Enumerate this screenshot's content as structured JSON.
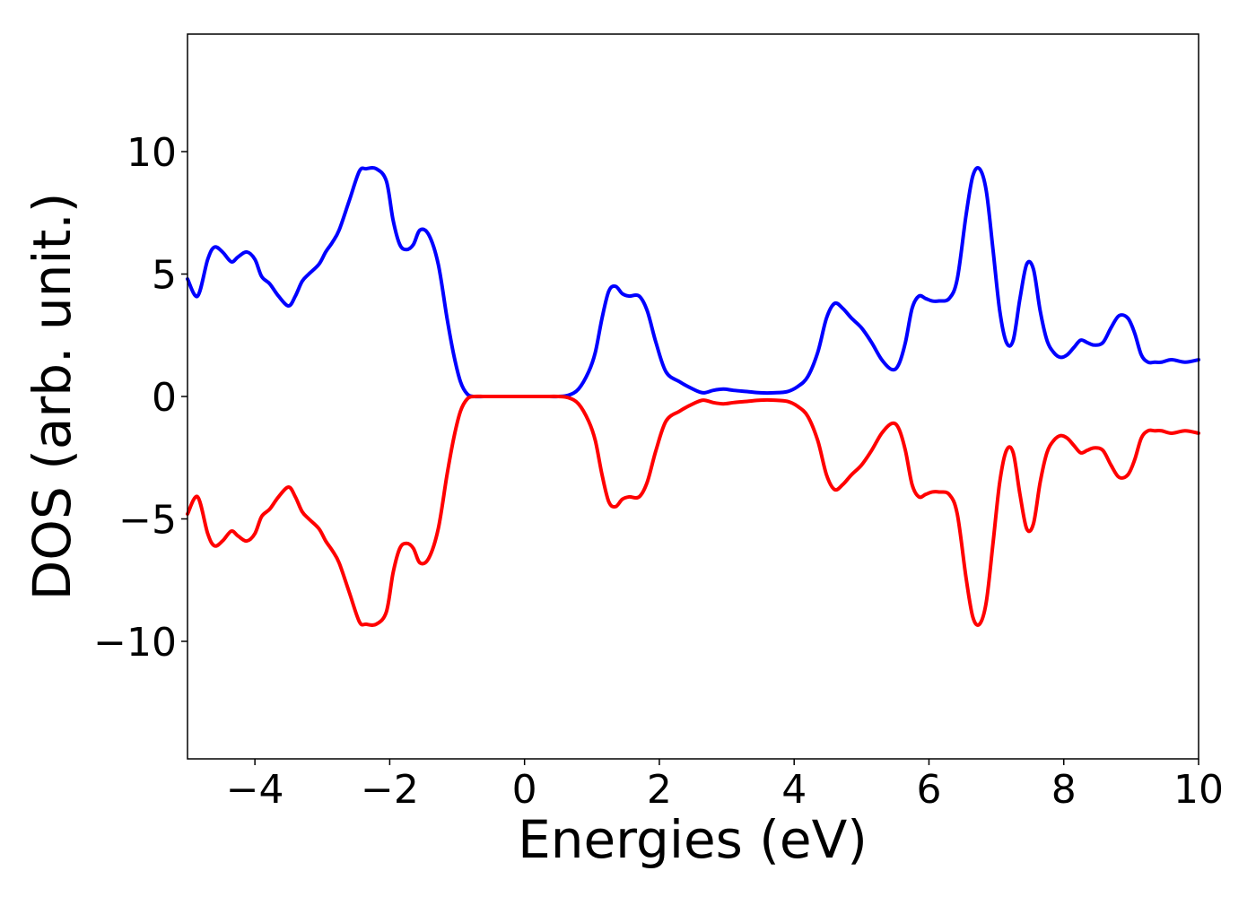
{
  "chart_data": {
    "type": "line",
    "title": "",
    "xlabel": "Energies (eV)",
    "ylabel": "DOS (arb. unit.)",
    "xlim": [
      -5,
      10
    ],
    "ylim": [
      -14.8,
      14.8
    ],
    "xticks": [
      -4,
      -2,
      0,
      2,
      4,
      6,
      8,
      10
    ],
    "xtick_labels": [
      "−4",
      "−2",
      "0",
      "2",
      "4",
      "6",
      "8",
      "10"
    ],
    "yticks": [
      -10,
      -5,
      0,
      5,
      10
    ],
    "ytick_labels": [
      "−10",
      "−5",
      "0",
      "5",
      "10"
    ],
    "grid": false,
    "legend": "none",
    "series": [
      {
        "color": "#0000ff",
        "x": [
          -5.0,
          -4.85,
          -4.7,
          -4.6,
          -4.48,
          -4.35,
          -4.25,
          -4.12,
          -4.0,
          -3.9,
          -3.78,
          -3.65,
          -3.5,
          -3.4,
          -3.3,
          -3.2,
          -3.05,
          -2.95,
          -2.85,
          -2.75,
          -2.6,
          -2.45,
          -2.35,
          -2.2,
          -2.05,
          -1.95,
          -1.85,
          -1.75,
          -1.65,
          -1.55,
          -1.42,
          -1.28,
          -1.15,
          -1.05,
          -0.95,
          -0.85,
          -0.75,
          -0.6,
          -0.45,
          -0.3,
          -0.1,
          0.1,
          0.3,
          0.5,
          0.65,
          0.8,
          0.95,
          1.05,
          1.15,
          1.25,
          1.35,
          1.45,
          1.55,
          1.7,
          1.82,
          1.95,
          2.1,
          2.3,
          2.5,
          2.65,
          2.8,
          2.95,
          3.1,
          3.3,
          3.5,
          3.7,
          3.9,
          4.05,
          4.2,
          4.35,
          4.48,
          4.6,
          4.72,
          4.85,
          5.0,
          5.15,
          5.3,
          5.45,
          5.55,
          5.65,
          5.75,
          5.85,
          5.95,
          6.05,
          6.15,
          6.3,
          6.42,
          6.55,
          6.65,
          6.75,
          6.85,
          6.95,
          7.05,
          7.15,
          7.25,
          7.35,
          7.45,
          7.55,
          7.65,
          7.75,
          7.85,
          7.95,
          8.05,
          8.15,
          8.25,
          8.35,
          8.45,
          8.58,
          8.7,
          8.82,
          8.95,
          9.05,
          9.15,
          9.25,
          9.35,
          9.45,
          9.6,
          9.8,
          10.0
        ],
        "y": [
          4.8,
          4.1,
          5.6,
          6.1,
          5.9,
          5.5,
          5.7,
          5.9,
          5.6,
          4.9,
          4.6,
          4.1,
          3.7,
          4.1,
          4.7,
          5.0,
          5.4,
          5.9,
          6.3,
          6.8,
          8.0,
          9.2,
          9.3,
          9.3,
          8.8,
          7.2,
          6.2,
          6.0,
          6.2,
          6.8,
          6.6,
          5.4,
          3.2,
          1.7,
          0.6,
          0.1,
          0.0,
          0.0,
          0.0,
          0.0,
          0.0,
          0.0,
          0.0,
          0.0,
          0.05,
          0.3,
          1.0,
          1.8,
          3.2,
          4.3,
          4.5,
          4.2,
          4.1,
          4.1,
          3.5,
          2.2,
          1.0,
          0.6,
          0.3,
          0.15,
          0.25,
          0.3,
          0.25,
          0.2,
          0.15,
          0.15,
          0.2,
          0.4,
          0.8,
          1.8,
          3.2,
          3.8,
          3.6,
          3.2,
          2.8,
          2.2,
          1.5,
          1.1,
          1.3,
          2.2,
          3.6,
          4.1,
          4.0,
          3.9,
          3.9,
          4.0,
          4.8,
          7.4,
          9.0,
          9.3,
          8.4,
          6.0,
          3.5,
          2.2,
          2.3,
          4.0,
          5.4,
          5.2,
          3.5,
          2.3,
          1.8,
          1.6,
          1.7,
          2.0,
          2.3,
          2.2,
          2.1,
          2.2,
          2.8,
          3.3,
          3.2,
          2.6,
          1.7,
          1.4,
          1.4,
          1.4,
          1.5,
          1.4,
          1.5
        ]
      },
      {
        "color": "#ff0000",
        "x": [
          -5.0,
          -4.85,
          -4.7,
          -4.6,
          -4.48,
          -4.35,
          -4.25,
          -4.12,
          -4.0,
          -3.9,
          -3.78,
          -3.65,
          -3.5,
          -3.4,
          -3.3,
          -3.2,
          -3.05,
          -2.95,
          -2.85,
          -2.75,
          -2.6,
          -2.45,
          -2.35,
          -2.2,
          -2.05,
          -1.95,
          -1.85,
          -1.75,
          -1.65,
          -1.55,
          -1.42,
          -1.28,
          -1.15,
          -1.05,
          -0.95,
          -0.85,
          -0.75,
          -0.6,
          -0.45,
          -0.3,
          -0.1,
          0.1,
          0.3,
          0.5,
          0.65,
          0.8,
          0.95,
          1.05,
          1.15,
          1.25,
          1.35,
          1.45,
          1.55,
          1.7,
          1.82,
          1.95,
          2.1,
          2.3,
          2.5,
          2.65,
          2.8,
          2.95,
          3.1,
          3.3,
          3.5,
          3.7,
          3.9,
          4.05,
          4.2,
          4.35,
          4.48,
          4.6,
          4.72,
          4.85,
          5.0,
          5.15,
          5.3,
          5.45,
          5.55,
          5.65,
          5.75,
          5.85,
          5.95,
          6.05,
          6.15,
          6.3,
          6.42,
          6.55,
          6.65,
          6.75,
          6.85,
          6.95,
          7.05,
          7.15,
          7.25,
          7.35,
          7.45,
          7.55,
          7.65,
          7.75,
          7.85,
          7.95,
          8.05,
          8.15,
          8.25,
          8.35,
          8.45,
          8.58,
          8.7,
          8.82,
          8.95,
          9.05,
          9.15,
          9.25,
          9.35,
          9.45,
          9.6,
          9.8,
          10.0
        ],
        "y": [
          -4.8,
          -4.1,
          -5.6,
          -6.1,
          -5.9,
          -5.5,
          -5.7,
          -5.9,
          -5.6,
          -4.9,
          -4.6,
          -4.1,
          -3.7,
          -4.1,
          -4.7,
          -5.0,
          -5.4,
          -5.9,
          -6.3,
          -6.8,
          -8.0,
          -9.2,
          -9.3,
          -9.3,
          -8.8,
          -7.2,
          -6.2,
          -6.0,
          -6.2,
          -6.8,
          -6.6,
          -5.4,
          -3.2,
          -1.7,
          -0.6,
          -0.1,
          0.0,
          0.0,
          0.0,
          0.0,
          0.0,
          0.0,
          0.0,
          0.0,
          -0.05,
          -0.3,
          -1.0,
          -1.8,
          -3.2,
          -4.3,
          -4.5,
          -4.2,
          -4.1,
          -4.1,
          -3.5,
          -2.2,
          -1.0,
          -0.6,
          -0.3,
          -0.15,
          -0.25,
          -0.3,
          -0.25,
          -0.2,
          -0.15,
          -0.15,
          -0.2,
          -0.4,
          -0.8,
          -1.8,
          -3.2,
          -3.8,
          -3.6,
          -3.2,
          -2.8,
          -2.2,
          -1.5,
          -1.1,
          -1.3,
          -2.2,
          -3.6,
          -4.1,
          -4.0,
          -3.9,
          -3.9,
          -4.0,
          -4.8,
          -7.4,
          -9.0,
          -9.3,
          -8.4,
          -6.0,
          -3.5,
          -2.2,
          -2.3,
          -4.0,
          -5.4,
          -5.2,
          -3.5,
          -2.3,
          -1.8,
          -1.6,
          -1.7,
          -2.0,
          -2.3,
          -2.2,
          -2.1,
          -2.2,
          -2.8,
          -3.3,
          -3.2,
          -2.6,
          -1.7,
          -1.4,
          -1.4,
          -1.4,
          -1.5,
          -1.4,
          -1.5
        ]
      }
    ]
  }
}
